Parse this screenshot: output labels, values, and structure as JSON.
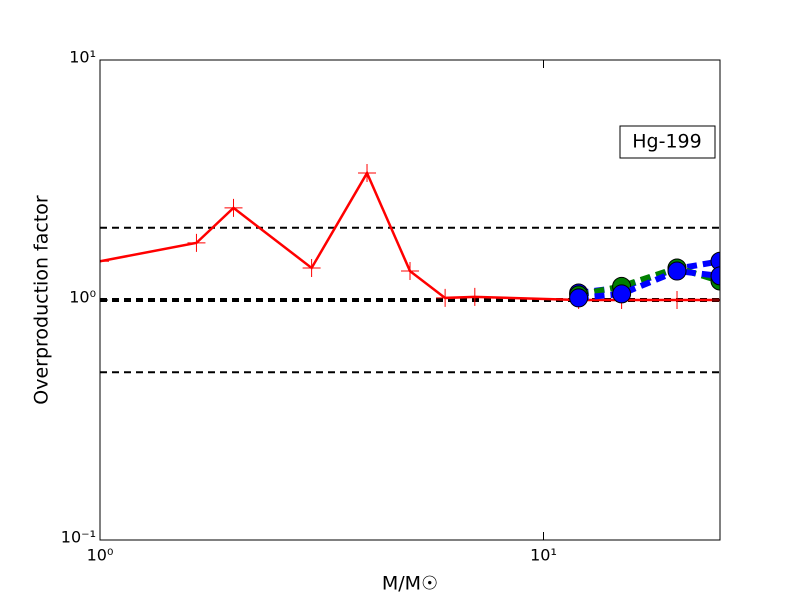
{
  "chart_data": {
    "type": "line",
    "log_x": true,
    "log_y": true,
    "xlabel": "M/M☉",
    "ylabel": "Overproduction factor",
    "annotation": "Hg-199",
    "xlim": [
      1,
      25
    ],
    "ylim": [
      0.1,
      10
    ],
    "xticks": [
      {
        "value": 1,
        "label": "10⁰"
      },
      {
        "value": 10,
        "label": "10¹"
      }
    ],
    "yticks": [
      {
        "value": 0.1,
        "label": "10⁻¹"
      },
      {
        "value": 1,
        "label": "10⁰"
      },
      {
        "value": 10,
        "label": "10¹"
      }
    ],
    "reference_lines": [
      2,
      1,
      0.5
    ],
    "series": [
      {
        "color": "#ff0000",
        "marker": "+",
        "linestyle": "solid",
        "x": [
          1,
          1.65,
          2,
          3,
          4,
          5,
          6,
          7,
          12,
          15,
          20,
          25
        ],
        "values": [
          1.45,
          1.73,
          2.42,
          1.36,
          3.38,
          1.32,
          1.02,
          1.03,
          1.0,
          1.0,
          1.0,
          1.0
        ]
      },
      {
        "color": "#0000ff",
        "marker": "o",
        "linestyle": "dashed",
        "x": [
          12,
          15,
          20,
          25
        ],
        "values": [
          1.07,
          1.13,
          1.35,
          1.45
        ]
      },
      {
        "color": "#008000",
        "marker": "o",
        "linestyle": "dashed",
        "x": [
          12,
          15,
          20,
          25
        ],
        "values": [
          1.05,
          1.14,
          1.36,
          1.2
        ]
      },
      {
        "color": "#0000ff",
        "marker": "o",
        "linestyle": "dashed",
        "x": [
          12,
          15,
          20,
          25
        ],
        "values": [
          1.02,
          1.06,
          1.32,
          1.26
        ]
      }
    ]
  }
}
